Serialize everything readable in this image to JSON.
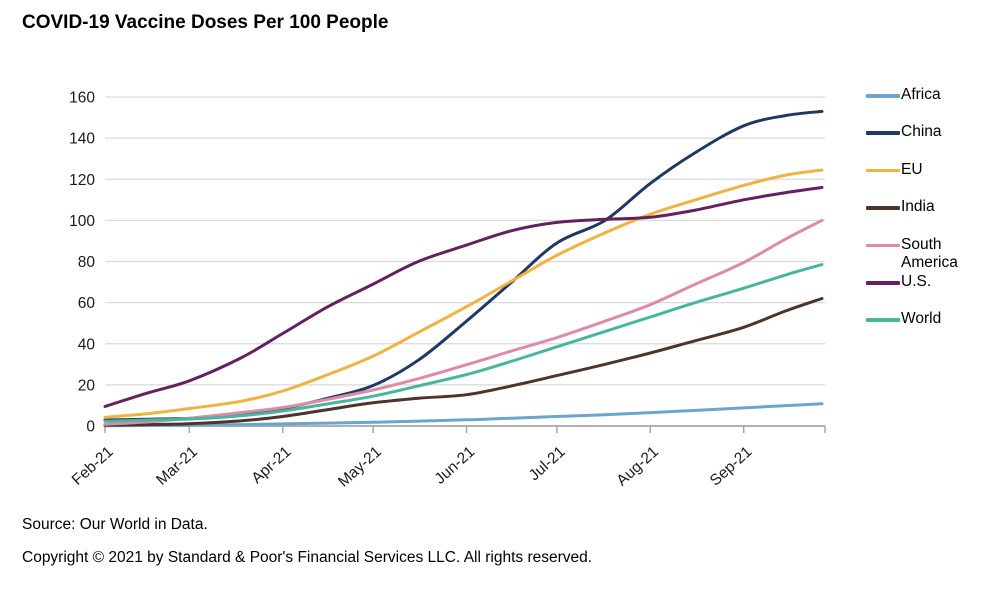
{
  "title": "COVID-19 Vaccine Doses Per 100 People",
  "footer": {
    "source": "Source: Our World in Data.",
    "copyright": "Copyright © 2021 by Standard & Poor's Financial Services LLC. All rights reserved."
  },
  "chart_data": {
    "type": "line",
    "title": "COVID-19 Vaccine Doses Per 100 People",
    "xlabel": "",
    "ylabel": "",
    "ylim": [
      0,
      160
    ],
    "ytick_step": 20,
    "ytick_labels": [
      "0",
      "20",
      "40",
      "60",
      "80",
      "100",
      "120",
      "140",
      "160"
    ],
    "grid": "horizontal-only",
    "legend_position": "right",
    "x_unit": "days-since-Feb-1-2021",
    "x": [
      0,
      14,
      28,
      45,
      59,
      74,
      89,
      104,
      120,
      135,
      150,
      166,
      181,
      196,
      212,
      226,
      238
    ],
    "xticks": {
      "days": [
        0,
        28,
        59,
        89,
        120,
        150,
        181,
        212
      ],
      "labels": [
        "Feb-21",
        "Mar-21",
        "Apr-21",
        "May-21",
        "Jun-21",
        "Jul-21",
        "Aug-21",
        "Sep-21"
      ]
    },
    "series": [
      {
        "name": "Africa",
        "color": "#6BA5CD",
        "values": [
          0.1,
          0.25,
          0.4,
          0.7,
          1.0,
          1.4,
          1.8,
          2.4,
          3.0,
          3.8,
          4.6,
          5.5,
          6.5,
          7.6,
          8.8,
          9.9,
          10.8
        ]
      },
      {
        "name": "China",
        "color": "#1F3864",
        "values": [
          2.9,
          3.3,
          3.7,
          5.5,
          8.5,
          13.5,
          19.7,
          32,
          51,
          70,
          89,
          100,
          118,
          133,
          146,
          151,
          153
        ]
      },
      {
        "name": "EU",
        "color": "#F0B241",
        "values": [
          4.2,
          6,
          8.5,
          12,
          17,
          25,
          34,
          45.5,
          58,
          70.5,
          83,
          94,
          103,
          110,
          117,
          122,
          124.5
        ]
      },
      {
        "name": "India",
        "color": "#4E342A",
        "values": [
          0.4,
          0.7,
          1.1,
          2.5,
          4.6,
          8,
          11.3,
          13.5,
          15.2,
          19.5,
          24.5,
          30,
          35.5,
          41.5,
          48,
          56,
          62
        ]
      },
      {
        "name": "South America",
        "color": "#DD8CA7",
        "values": [
          0.8,
          2,
          3.8,
          6.5,
          9,
          13,
          17.5,
          23,
          29.8,
          36.5,
          43,
          51,
          59,
          69,
          79.5,
          91,
          100
        ]
      },
      {
        "name": "U.S.",
        "color": "#65215F",
        "values": [
          9.5,
          16,
          22,
          33,
          45,
          58,
          69,
          80,
          88,
          95,
          99,
          100.5,
          101.5,
          105,
          110,
          113.5,
          116
        ]
      },
      {
        "name": "World",
        "color": "#48B69C",
        "values": [
          2.3,
          2.9,
          3.4,
          5,
          7.3,
          10.8,
          14.5,
          19.5,
          25,
          31.5,
          38.5,
          46,
          53,
          60,
          67,
          73.5,
          78.5
        ]
      }
    ],
    "axis_color": "#A6A6A6",
    "gridline_color": "#D9D9D9",
    "text_color": "#1a1a1a"
  }
}
